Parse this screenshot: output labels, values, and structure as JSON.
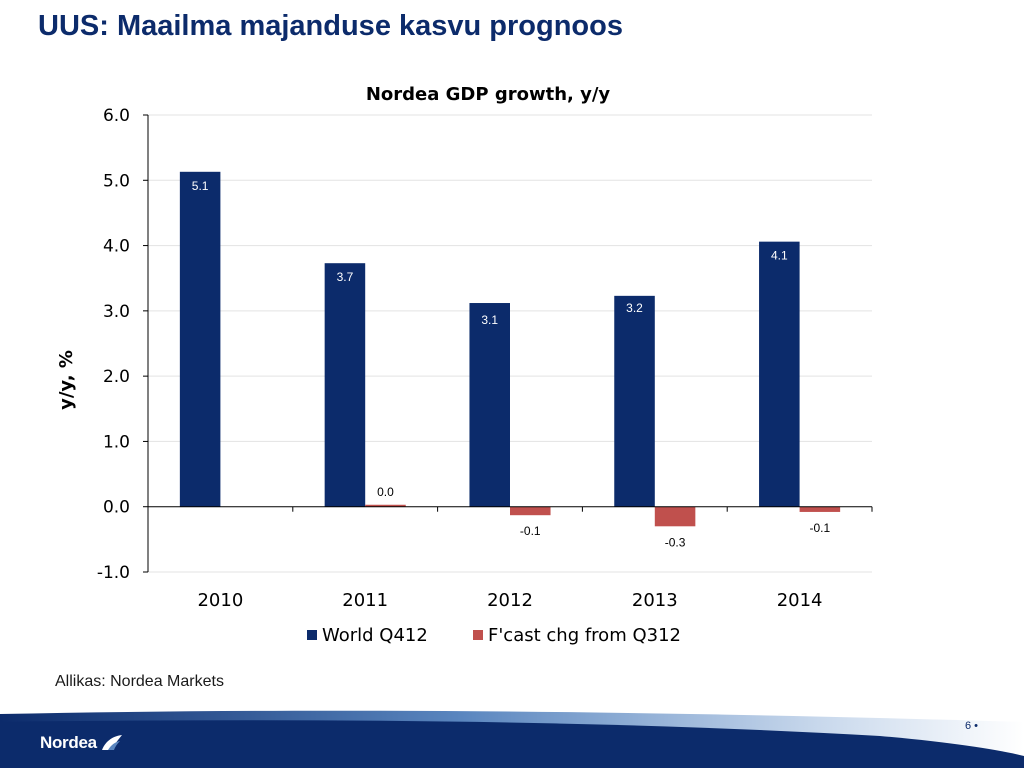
{
  "slide": {
    "title": "UUS: Maailma majanduse kasvu prognoos",
    "source": "Allikas: Nordea Markets",
    "page_number": "6 •"
  },
  "brand": {
    "logo_text": "Nordea",
    "logo_icon": "nordea-sail-icon",
    "primary_color": "#0c2b6b",
    "secondary_color": "#c0504d"
  },
  "chart_data": {
    "type": "bar",
    "title": "Nordea GDP growth, y/y",
    "xlabel": "",
    "ylabel": "y/y, %",
    "ylim": [
      -1.0,
      6.0
    ],
    "yticks": [
      "6.0",
      "5.0",
      "4.0",
      "3.0",
      "2.0",
      "1.0",
      "0.0",
      "-1.0"
    ],
    "categories": [
      "2010",
      "2011",
      "2012",
      "2013",
      "2014"
    ],
    "series": [
      {
        "name": "World Q412",
        "color": "#0c2b6b",
        "values": [
          5.13,
          3.73,
          3.12,
          3.23,
          4.06
        ],
        "labels": [
          "5.1",
          "3.7",
          "3.1",
          "3.2",
          "4.1"
        ]
      },
      {
        "name": "F'cast chg from Q312",
        "color": "#c0504d",
        "values": [
          null,
          0.03,
          -0.13,
          -0.3,
          -0.08
        ],
        "labels": [
          "",
          "0.0",
          "-0.1",
          "-0.3",
          "-0.1"
        ]
      }
    ],
    "grid": true,
    "legend_position": "bottom"
  }
}
